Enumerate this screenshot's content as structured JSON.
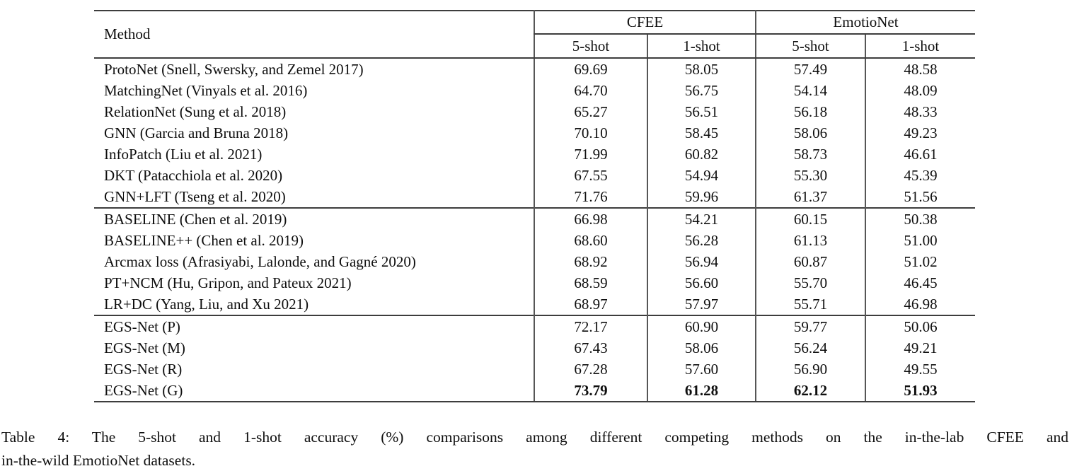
{
  "page": {
    "background": "#ffffff",
    "text_color": "#0f0f0f",
    "rule_color": "#3d3d3d"
  },
  "table": {
    "header": {
      "method_label": "Method",
      "groups": [
        {
          "label": "CFEE"
        },
        {
          "label": "EmotioNet"
        }
      ],
      "subcolumns": [
        "5-shot",
        "1-shot",
        "5-shot",
        "1-shot"
      ]
    },
    "groups": [
      {
        "rows": [
          {
            "method": "ProtoNet (Snell, Swersky, and Zemel 2017)",
            "values": [
              "69.69",
              "58.05",
              "57.49",
              "48.58"
            ],
            "bold": false
          },
          {
            "method": "MatchingNet (Vinyals et al. 2016)",
            "values": [
              "64.70",
              "56.75",
              "54.14",
              "48.09"
            ],
            "bold": false
          },
          {
            "method": "RelationNet (Sung et al. 2018)",
            "values": [
              "65.27",
              "56.51",
              "56.18",
              "48.33"
            ],
            "bold": false
          },
          {
            "method": "GNN (Garcia and Bruna 2018)",
            "values": [
              "70.10",
              "58.45",
              "58.06",
              "49.23"
            ],
            "bold": false
          },
          {
            "method": "InfoPatch (Liu et al. 2021)",
            "values": [
              "71.99",
              "60.82",
              "58.73",
              "46.61"
            ],
            "bold": false
          },
          {
            "method": "DKT (Patacchiola et al. 2020)",
            "values": [
              "67.55",
              "54.94",
              "55.30",
              "45.39"
            ],
            "bold": false
          },
          {
            "method": "GNN+LFT (Tseng et al. 2020)",
            "values": [
              "71.76",
              "59.96",
              "61.37",
              "51.56"
            ],
            "bold": false
          }
        ]
      },
      {
        "rows": [
          {
            "method": "BASELINE (Chen et al. 2019)",
            "values": [
              "66.98",
              "54.21",
              "60.15",
              "50.38"
            ],
            "bold": false
          },
          {
            "method": "BASELINE++ (Chen et al. 2019)",
            "values": [
              "68.60",
              "56.28",
              "61.13",
              "51.00"
            ],
            "bold": false
          },
          {
            "method": "Arcmax loss (Afrasiyabi, Lalonde, and Gagné 2020)",
            "values": [
              "68.92",
              "56.94",
              "60.87",
              "51.02"
            ],
            "bold": false
          },
          {
            "method": "PT+NCM (Hu, Gripon, and Pateux 2021)",
            "values": [
              "68.59",
              "56.60",
              "55.70",
              "46.45"
            ],
            "bold": false
          },
          {
            "method": "LR+DC (Yang, Liu, and Xu 2021)",
            "values": [
              "68.97",
              "57.97",
              "55.71",
              "46.98"
            ],
            "bold": false
          }
        ]
      },
      {
        "rows": [
          {
            "method": "EGS-Net (P)",
            "values": [
              "72.17",
              "60.90",
              "59.77",
              "50.06"
            ],
            "bold": false
          },
          {
            "method": "EGS-Net (M)",
            "values": [
              "67.43",
              "58.06",
              "56.24",
              "49.21"
            ],
            "bold": false
          },
          {
            "method": "EGS-Net (R)",
            "values": [
              "67.28",
              "57.60",
              "56.90",
              "49.55"
            ],
            "bold": false
          },
          {
            "method": "EGS-Net (G)",
            "values": [
              "73.79",
              "61.28",
              "62.12",
              "51.93"
            ],
            "bold": true
          }
        ]
      }
    ]
  },
  "caption": {
    "label": "Table 4:",
    "line1": "Table 4: The 5-shot and 1-shot accuracy (%) comparisons among different competing methods on the in-the-lab CFEE and",
    "line2": "in-the-wild EmotioNet datasets."
  }
}
